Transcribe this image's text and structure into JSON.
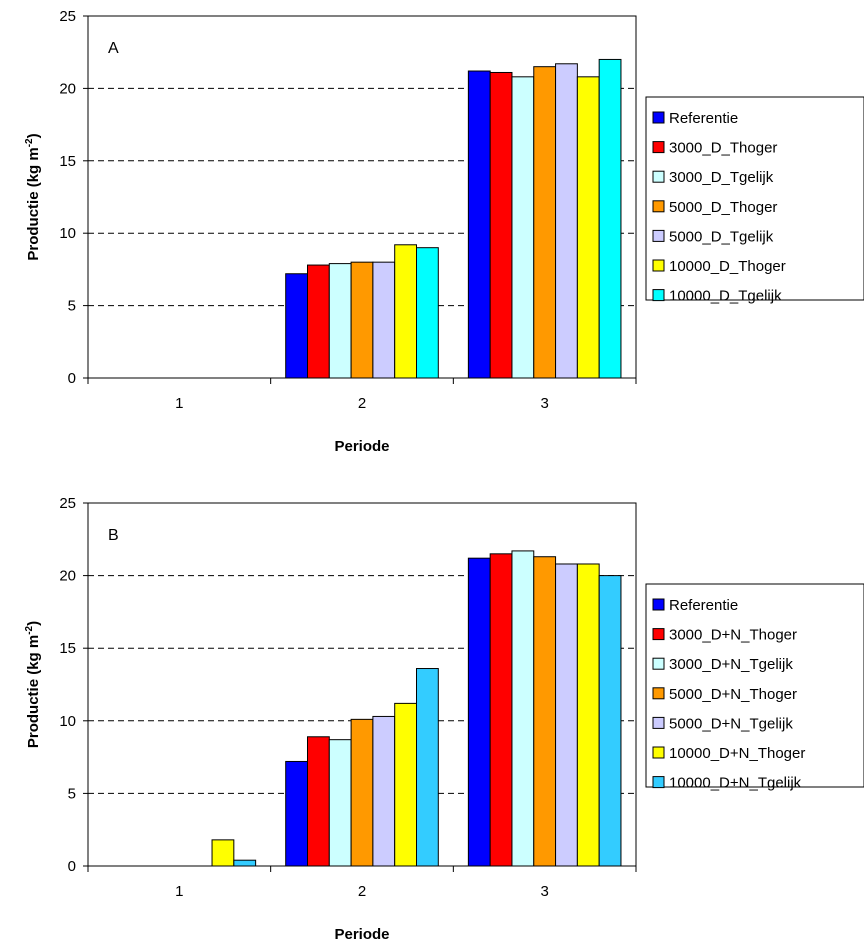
{
  "chart_data": [
    {
      "type": "bar",
      "panel_label": "A",
      "xlabel": "Periode",
      "ylabel": "Productie (kg m",
      "ylabel_sup": "-2",
      "ylabel_end": ")",
      "ylim": [
        0,
        25
      ],
      "yticks": [
        "0",
        "5",
        "10",
        "15",
        "20",
        "25"
      ],
      "grid": "horizontal dashed",
      "legend_position": "right",
      "categories": [
        "1",
        "2",
        "3"
      ],
      "series": [
        {
          "name": "Referentie",
          "color": "#0000ff",
          "values": [
            0,
            7.2,
            21.2
          ]
        },
        {
          "name": "3000_D_Thoger",
          "color": "#ff0000",
          "values": [
            0,
            7.8,
            21.1
          ]
        },
        {
          "name": "3000_D_Tgelijk",
          "color": "#ccffff",
          "values": [
            0,
            7.9,
            20.8
          ]
        },
        {
          "name": "5000_D_Thoger",
          "color": "#ff9900",
          "values": [
            0,
            8.0,
            21.5
          ]
        },
        {
          "name": "5000_D_Tgelijk",
          "color": "#ccccff",
          "values": [
            0,
            8.0,
            21.7
          ]
        },
        {
          "name": "10000_D_Thoger",
          "color": "#ffff00",
          "values": [
            0,
            9.2,
            20.8
          ]
        },
        {
          "name": "10000_D_Tgelijk",
          "color": "#00ffff",
          "values": [
            0,
            9.0,
            22.0
          ]
        }
      ]
    },
    {
      "type": "bar",
      "panel_label": "B",
      "xlabel": "Periode",
      "ylabel": "Productie (kg m",
      "ylabel_sup": "-2",
      "ylabel_end": ")",
      "ylim": [
        0,
        25
      ],
      "yticks": [
        "0",
        "5",
        "10",
        "15",
        "20",
        "25"
      ],
      "grid": "horizontal dashed",
      "legend_position": "right",
      "categories": [
        "1",
        "2",
        "3"
      ],
      "series": [
        {
          "name": "Referentie",
          "color": "#0000ff",
          "values": [
            0,
            7.2,
            21.2
          ]
        },
        {
          "name": "3000_D+N_Thoger",
          "color": "#ff0000",
          "values": [
            0,
            8.9,
            21.5
          ]
        },
        {
          "name": "3000_D+N_Tgelijk",
          "color": "#ccffff",
          "values": [
            0,
            8.7,
            21.7
          ]
        },
        {
          "name": "5000_D+N_Thoger",
          "color": "#ff9900",
          "values": [
            0,
            10.1,
            21.3
          ]
        },
        {
          "name": "5000_D+N_Tgelijk",
          "color": "#ccccff",
          "values": [
            0,
            10.3,
            20.8
          ]
        },
        {
          "name": "10000_D+N_Thoger",
          "color": "#ffff00",
          "values": [
            1.8,
            11.2,
            20.8
          ]
        },
        {
          "name": "10000_D+N_Tgelijk",
          "color": "#33ccff",
          "values": [
            0.4,
            13.6,
            20.0
          ]
        }
      ]
    }
  ]
}
